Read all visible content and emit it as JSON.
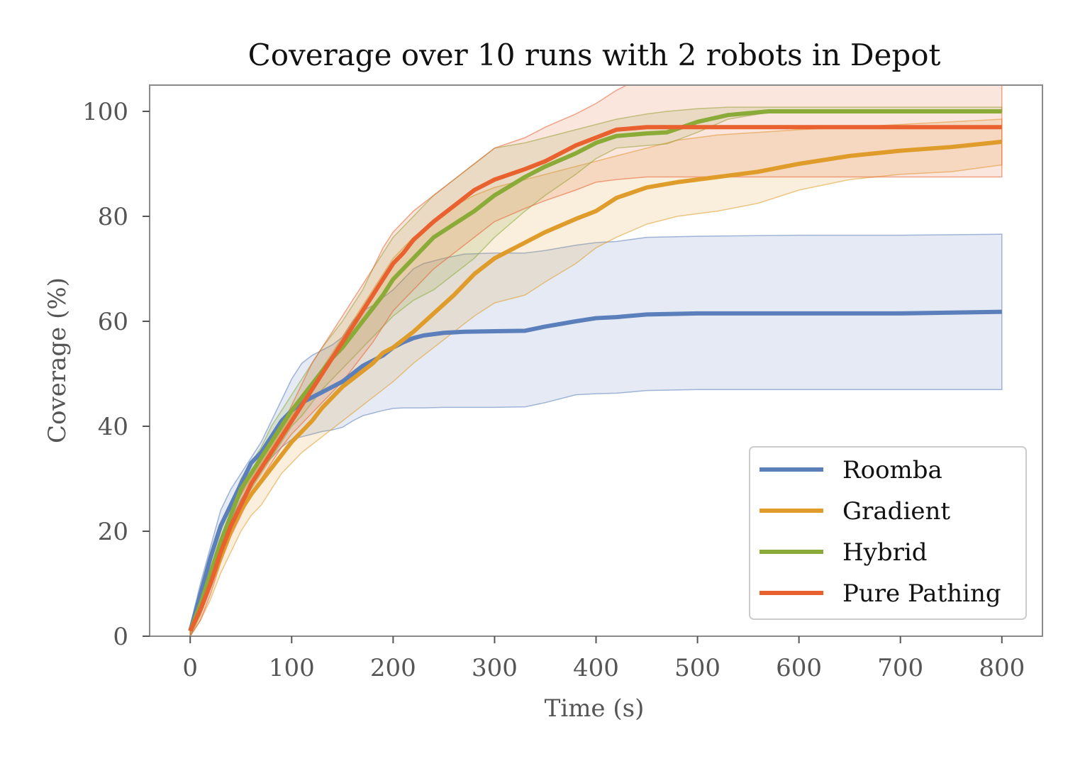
{
  "chart_data": {
    "type": "line",
    "title": "Coverage over 10 runs with 2 robots in Depot",
    "xlabel": "Time (s)",
    "ylabel": "Coverage (%)",
    "xlim": [
      -40,
      840
    ],
    "ylim": [
      0,
      105
    ],
    "xticks": [
      0,
      100,
      200,
      300,
      400,
      500,
      600,
      700,
      800
    ],
    "yticks": [
      0,
      20,
      40,
      60,
      80,
      100
    ],
    "grid": false,
    "legend_position": "lower-right",
    "series": [
      {
        "name": "Roomba",
        "color": "#5b7fba",
        "x": [
          0,
          10,
          20,
          30,
          40,
          50,
          60,
          70,
          80,
          90,
          100,
          110,
          120,
          130,
          140,
          150,
          160,
          170,
          180,
          190,
          200,
          210,
          220,
          230,
          250,
          270,
          300,
          330,
          350,
          380,
          400,
          420,
          450,
          500,
          600,
          700,
          800
        ],
        "mean": [
          1,
          8,
          15,
          21,
          25,
          29,
          33,
          35,
          38,
          41,
          43,
          44.5,
          45.5,
          46.5,
          47.5,
          48.5,
          50,
          51.5,
          52.5,
          53.5,
          55,
          56,
          56.8,
          57.3,
          57.8,
          58,
          58.1,
          58.2,
          59,
          60,
          60.6,
          60.8,
          61.3,
          61.5,
          61.5,
          61.5,
          61.8
        ],
        "upper": [
          2,
          10,
          17,
          24,
          28,
          31,
          34,
          37,
          41,
          45,
          49,
          52,
          53.5,
          54.5,
          55.5,
          57,
          60,
          62,
          63,
          64.5,
          66,
          68,
          70,
          71,
          72,
          72.8,
          73,
          73,
          73.5,
          74.5,
          75,
          75.2,
          76,
          76.2,
          76.4,
          76.4,
          76.6
        ],
        "lower": [
          0,
          5,
          12,
          18,
          22,
          26,
          29,
          32,
          34,
          36,
          37.5,
          38,
          38.5,
          39,
          39.3,
          39.8,
          41,
          42,
          42.5,
          43,
          43.4,
          43.5,
          43.5,
          43.5,
          43.6,
          43.6,
          43.6,
          43.7,
          44.5,
          46,
          46.2,
          46.3,
          46.8,
          47,
          47,
          47,
          47
        ]
      },
      {
        "name": "Gradient",
        "color": "#e09c2a",
        "x": [
          0,
          10,
          20,
          30,
          40,
          50,
          60,
          70,
          80,
          90,
          100,
          110,
          120,
          130,
          140,
          150,
          160,
          170,
          180,
          190,
          200,
          220,
          240,
          260,
          280,
          300,
          330,
          350,
          380,
          400,
          420,
          450,
          480,
          520,
          560,
          600,
          650,
          700,
          750,
          800
        ],
        "mean": [
          1,
          5,
          10,
          15,
          20,
          24,
          27,
          29.5,
          32,
          34.5,
          37,
          39,
          41,
          43.5,
          45.5,
          47.5,
          49,
          50.5,
          52,
          54,
          55,
          58,
          61.5,
          65,
          69,
          72,
          75,
          77,
          79.5,
          81,
          83.5,
          85.5,
          86.5,
          87.5,
          88.5,
          90,
          91.5,
          92.5,
          93.2,
          94.2
        ],
        "upper": [
          2,
          8,
          13,
          18,
          23,
          27,
          30,
          33,
          36,
          39,
          42,
          45,
          48,
          51,
          54,
          57,
          60,
          63,
          66,
          69,
          72,
          76,
          79,
          82,
          84,
          85.5,
          87,
          88,
          89.5,
          90.5,
          91.5,
          93,
          94.5,
          95.5,
          96,
          96.5,
          97,
          97.5,
          98,
          98.5
        ],
        "lower": [
          0,
          3,
          7,
          12,
          16,
          20,
          23,
          25,
          28,
          31,
          33,
          35,
          36.5,
          38,
          39.5,
          41,
          42.5,
          44,
          45.5,
          47,
          48.5,
          52,
          55,
          58,
          61,
          63.5,
          65,
          67.5,
          71,
          74,
          76,
          78.5,
          80,
          81,
          82.5,
          85,
          87,
          88,
          88.5,
          89.8
        ]
      },
      {
        "name": "Hybrid",
        "color": "#8aab38",
        "x": [
          0,
          10,
          20,
          30,
          40,
          50,
          60,
          70,
          80,
          90,
          100,
          110,
          120,
          130,
          140,
          150,
          160,
          170,
          180,
          190,
          200,
          220,
          240,
          260,
          280,
          300,
          330,
          350,
          380,
          400,
          420,
          450,
          470,
          500,
          530,
          570,
          600,
          700,
          800
        ],
        "mean": [
          1,
          6,
          12,
          18,
          23,
          28,
          31,
          34,
          37,
          40,
          43,
          45.5,
          48,
          50.5,
          53,
          55,
          57.5,
          60,
          62.5,
          65,
          68,
          72,
          76,
          78.5,
          81,
          84,
          87.5,
          89.5,
          92,
          94,
          95.3,
          95.8,
          96,
          98,
          99.3,
          100,
          100,
          100,
          100
        ],
        "upper": [
          2,
          8,
          14,
          20,
          25,
          30,
          33,
          36,
          40,
          43,
          46,
          49,
          52,
          55,
          57.5,
          60,
          63,
          66,
          70,
          73,
          76,
          80,
          84,
          87,
          90,
          93,
          94,
          95,
          96.5,
          97.5,
          98.5,
          99.5,
          100,
          100.5,
          100.8,
          100.8,
          100.8,
          100.8,
          100.8
        ],
        "lower": [
          0,
          4,
          10,
          15,
          20,
          25,
          28,
          31,
          34,
          37,
          40,
          42,
          44.5,
          47,
          49,
          51,
          53,
          55,
          57,
          59,
          61,
          64,
          66,
          69,
          72,
          76,
          81,
          84,
          88,
          91,
          93,
          93.5,
          93.8,
          96,
          98.5,
          99.8,
          100,
          100,
          100
        ]
      },
      {
        "name": "Pure Pathing",
        "color": "#e8612f",
        "x": [
          0,
          10,
          20,
          30,
          40,
          50,
          60,
          70,
          80,
          90,
          100,
          110,
          120,
          130,
          140,
          150,
          160,
          170,
          180,
          190,
          200,
          210,
          220,
          240,
          260,
          280,
          300,
          330,
          350,
          380,
          400,
          420,
          450,
          470,
          500,
          600,
          700,
          800
        ],
        "mean": [
          1,
          5,
          10,
          16,
          21,
          25,
          29,
          32,
          35,
          38,
          41,
          44,
          47,
          50,
          53,
          56,
          59,
          62,
          65,
          68,
          71,
          73,
          75.5,
          79,
          82,
          85,
          87,
          89,
          90.5,
          93.5,
          95,
          96.5,
          97,
          97,
          97,
          97,
          97,
          97
        ],
        "upper": [
          2,
          7,
          12,
          18,
          23,
          27,
          31,
          34,
          37,
          40,
          44,
          48,
          52,
          55,
          58,
          61,
          64,
          67,
          70,
          74,
          77,
          79,
          81,
          84,
          87,
          90,
          93,
          95,
          97,
          99.5,
          101.5,
          104,
          107,
          110,
          113,
          118,
          118,
          118
        ],
        "lower": [
          0,
          3,
          8,
          14,
          19,
          23,
          27,
          30,
          33,
          36,
          38.5,
          40.5,
          42.5,
          44.5,
          46.5,
          48.5,
          51,
          53.5,
          56,
          59,
          62,
          64,
          66,
          70,
          73,
          76,
          79,
          81.5,
          83,
          85,
          86.5,
          87,
          87.5,
          87.5,
          87.5,
          87.5,
          87.5,
          87.5
        ]
      }
    ]
  }
}
